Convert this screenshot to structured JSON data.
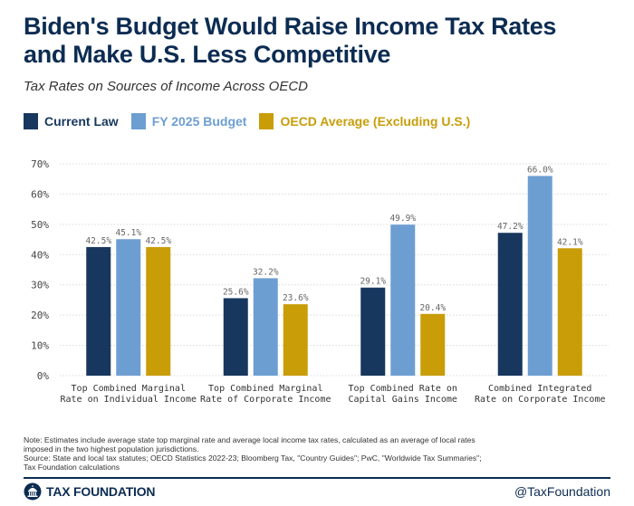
{
  "header": {
    "title_line1": "Biden's Budget Would Raise Income Tax Rates",
    "title_line2": "and Make U.S. Less Competitive",
    "subtitle": "Tax Rates on Sources of Income Across OECD"
  },
  "colors": {
    "current_law": "#17375e",
    "fy2025": "#6d9ed2",
    "oecd": "#c89d08",
    "brand": "#0c2c52"
  },
  "chart_data": {
    "type": "bar",
    "title": "Tax Rates on Sources of Income Across OECD",
    "xlabel": "",
    "ylabel": "",
    "ylim": [
      0,
      70
    ],
    "yticks": [
      0,
      10,
      20,
      30,
      40,
      50,
      60,
      70
    ],
    "ytick_labels": [
      "0%",
      "10%",
      "20%",
      "30%",
      "40%",
      "50%",
      "60%",
      "70%"
    ],
    "grid": true,
    "legend_position": "top-left",
    "categories": [
      [
        "Top Combined Marginal",
        "Rate on Individual Income"
      ],
      [
        "Top Combined Marginal",
        "Rate of Corporate Income"
      ],
      [
        "Top Combined Rate on",
        "Capital Gains Income"
      ],
      [
        "Combined Integrated",
        "Rate on Corporate Income"
      ]
    ],
    "series": [
      {
        "name": "Current Law",
        "values": [
          42.5,
          25.6,
          29.1,
          47.2
        ],
        "labels": [
          "42.5%",
          "25.6%",
          "29.1%",
          "47.2%"
        ]
      },
      {
        "name": "FY 2025 Budget",
        "values": [
          45.1,
          32.2,
          49.9,
          66.0
        ],
        "labels": [
          "45.1%",
          "32.2%",
          "49.9%",
          "66.0%"
        ]
      },
      {
        "name": "OECD Average (Excluding U.S.)",
        "values": [
          42.5,
          23.6,
          20.4,
          42.1
        ],
        "labels": [
          "42.5%",
          "23.6%",
          "20.4%",
          "42.1%"
        ]
      }
    ]
  },
  "note": {
    "line1": "Note: Estimates include average state top marginal rate and average local income tax rates, calculated as an average of local rates",
    "line2": "imposed in the two highest population jurisdictions.",
    "line3": "Source: State and local tax statutes; OECD Statistics 2022-23; Bloomberg Tax, \"Country Guides\"; PwC, \"Worldwide Tax Summaries\";",
    "line4": "Tax Foundation calculations"
  },
  "footer": {
    "logo_text": "TAX FOUNDATION",
    "handle": "@TaxFoundation"
  }
}
